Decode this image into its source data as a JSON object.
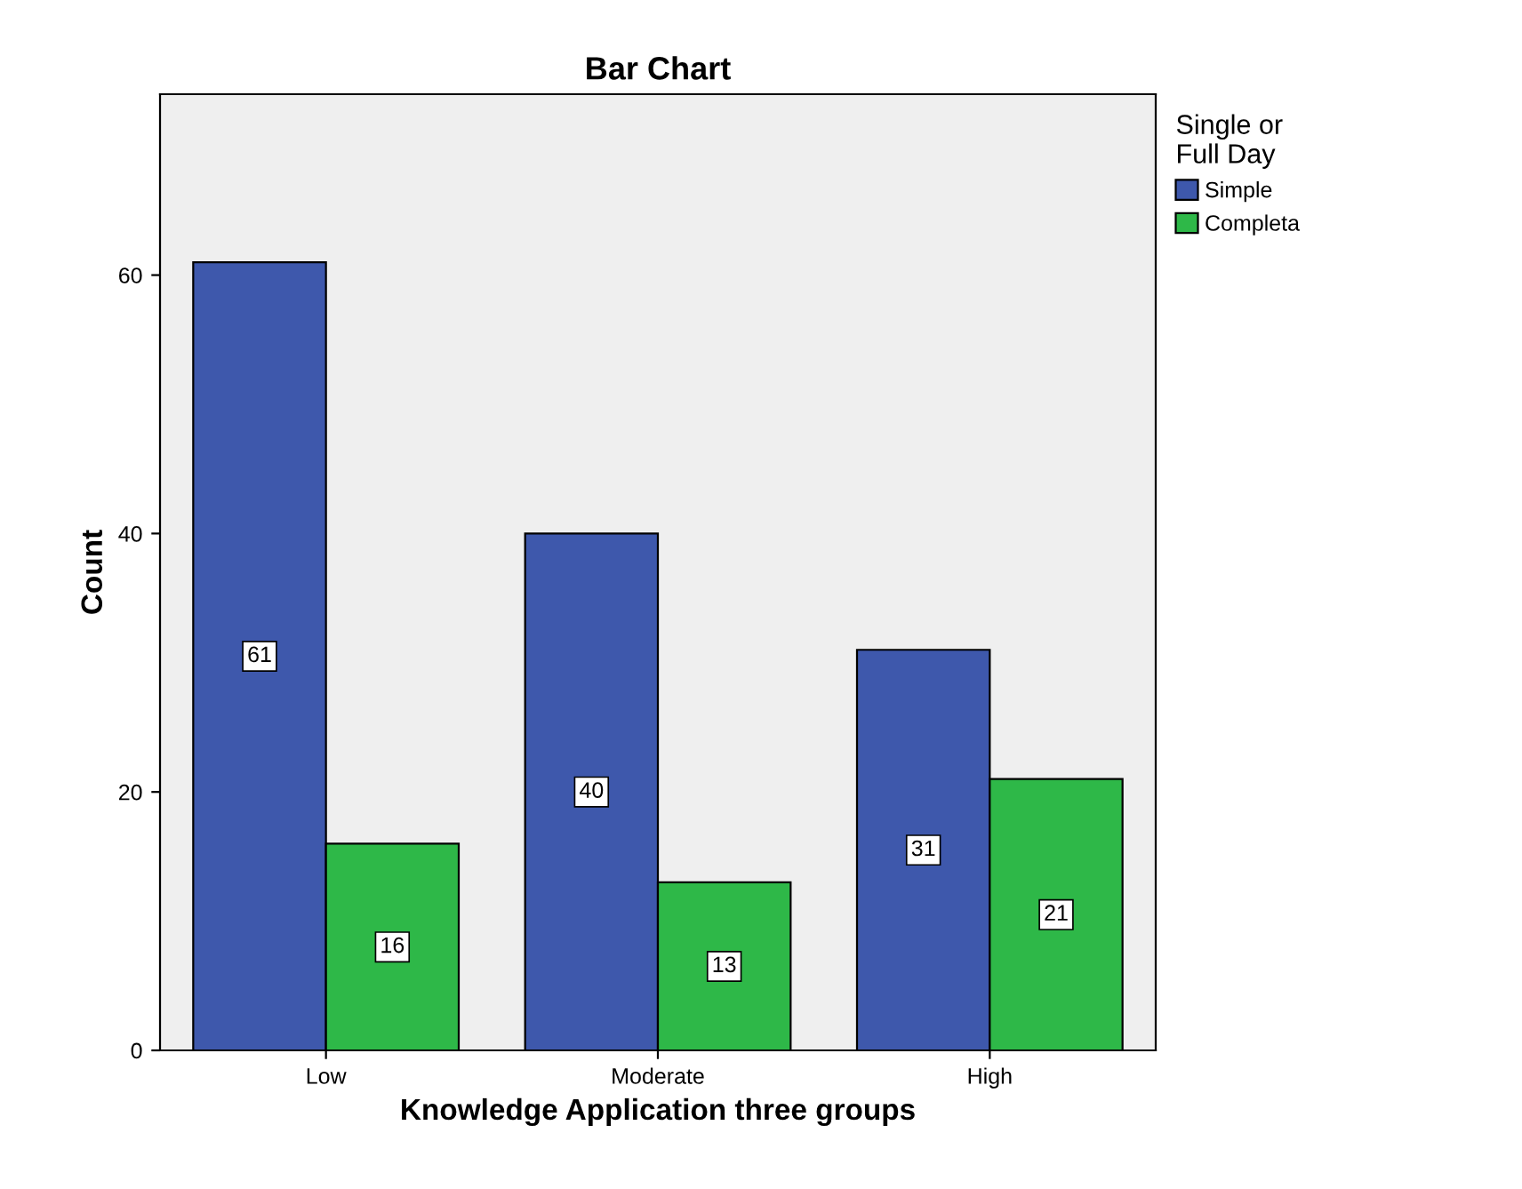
{
  "chart_data": {
    "type": "bar",
    "title": "Bar Chart",
    "xlabel": "Knowledge Application three groups",
    "ylabel": "Count",
    "legend_title": "Single or\nFull Day",
    "categories": [
      "Low",
      "Moderate",
      "High"
    ],
    "series": [
      {
        "name": "Simple",
        "color": "#3e58ac",
        "values": [
          61,
          40,
          31
        ]
      },
      {
        "name": "Completa",
        "color": "#2eb848",
        "values": [
          16,
          13,
          21
        ]
      }
    ],
    "ylim": [
      0,
      74
    ],
    "yticks": [
      0,
      20,
      40,
      60
    ],
    "data_labels": true,
    "legend": "top right",
    "grid": false
  }
}
